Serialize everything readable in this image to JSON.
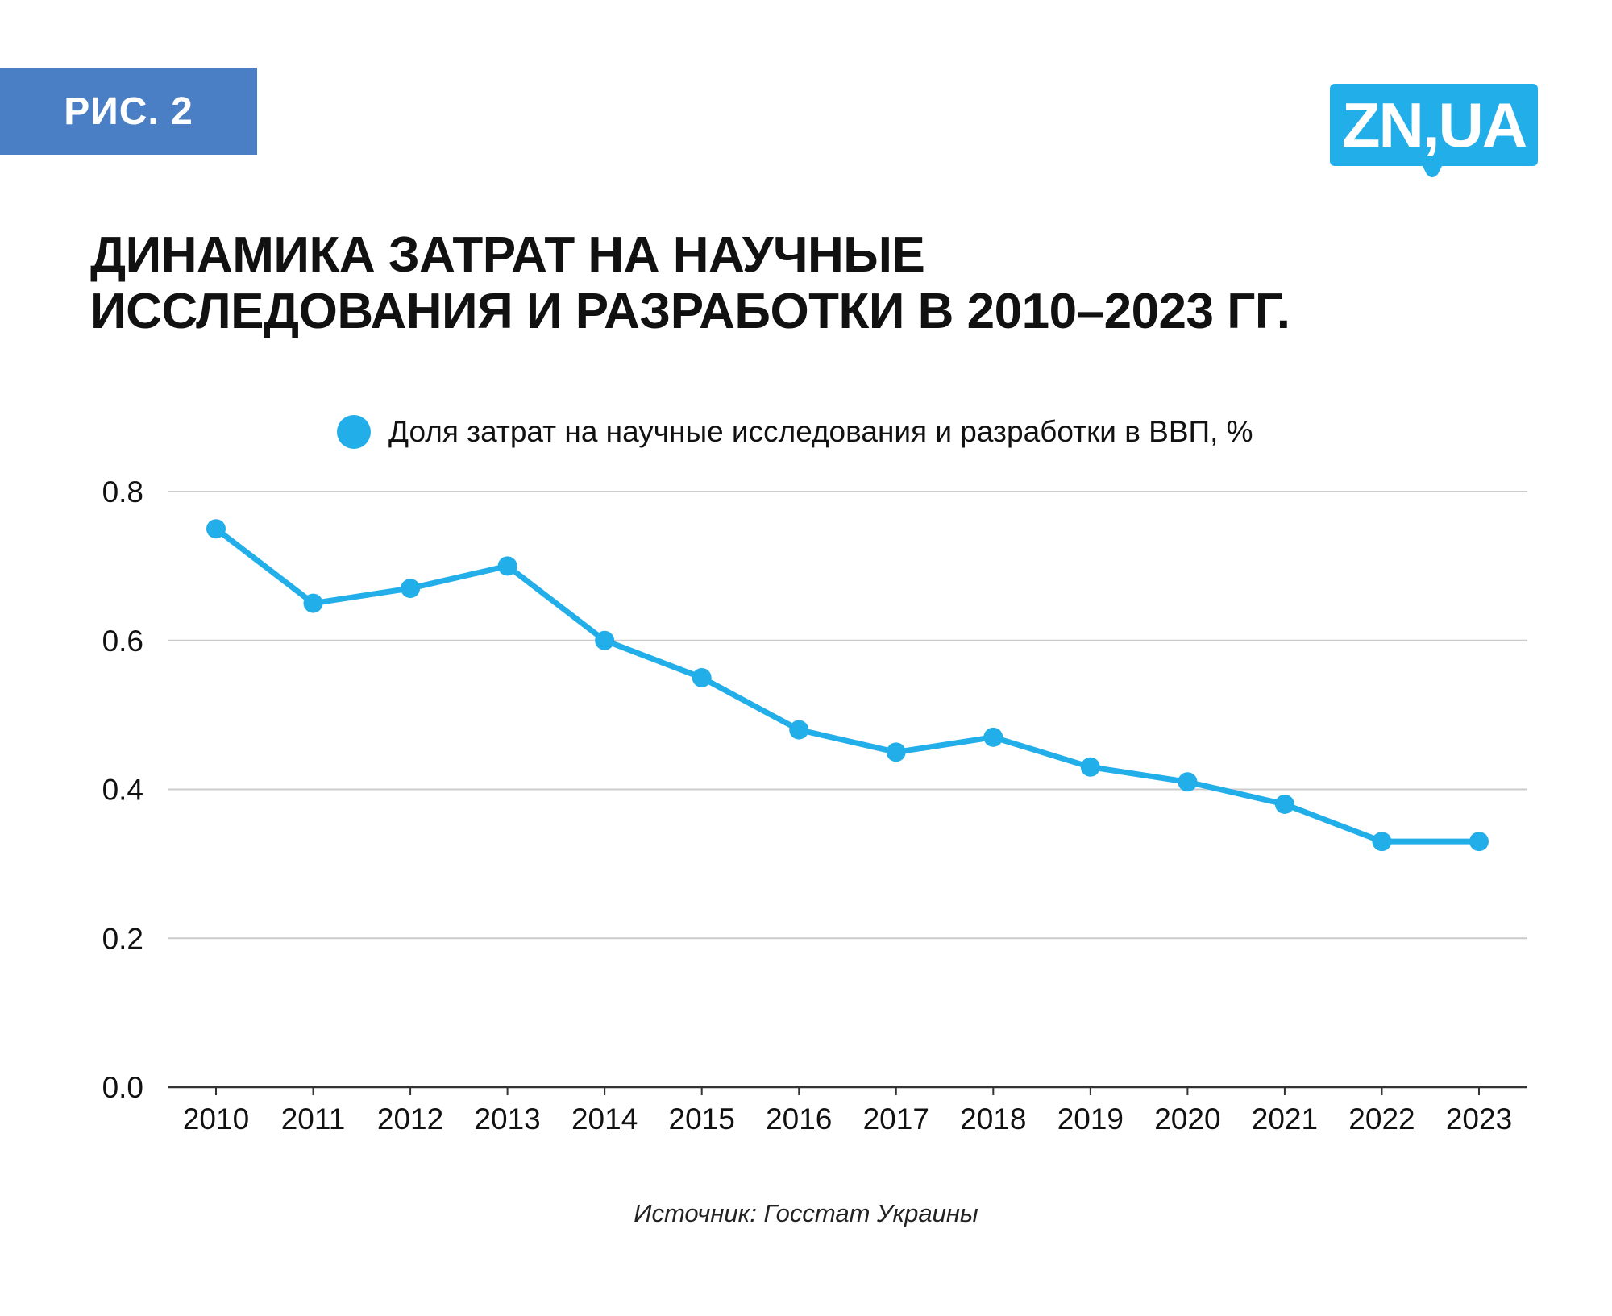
{
  "badge": {
    "label": "РИС. 2"
  },
  "logo": {
    "text": "ZN,UA"
  },
  "title": {
    "line1": "ДИНАМИКА ЗАТРАТ НА НАУЧНЫЕ",
    "line2": "ИССЛЕДОВАНИЯ И РАЗРАБОТКИ В 2010–2023 ГГ."
  },
  "source": "Источник: Госстат Украины",
  "colors": {
    "accent": "#22aee9",
    "badge": "#4a7fc5",
    "grid": "#cccccc",
    "axis": "#333333"
  },
  "chart_data": {
    "type": "line",
    "title": "ДИНАМИКА ЗАТРАТ НА НАУЧНЫЕ ИССЛЕДОВАНИЯ И РАЗРАБОТКИ В 2010–2023 ГГ.",
    "xlabel": "",
    "ylabel": "",
    "categories": [
      "2010",
      "2011",
      "2012",
      "2013",
      "2014",
      "2015",
      "2016",
      "2017",
      "2018",
      "2019",
      "2020",
      "2021",
      "2022",
      "2023"
    ],
    "series": [
      {
        "name": "Доля затрат на научные исследования и разработки в ВВП, %",
        "values": [
          0.75,
          0.65,
          0.67,
          0.7,
          0.6,
          0.55,
          0.48,
          0.45,
          0.47,
          0.43,
          0.41,
          0.38,
          0.33,
          0.33
        ]
      }
    ],
    "ylim": [
      0.0,
      0.8
    ],
    "yticks": [
      "0.0",
      "0.2",
      "0.4",
      "0.6",
      "0.8"
    ],
    "grid": true,
    "legend": "top-center"
  }
}
